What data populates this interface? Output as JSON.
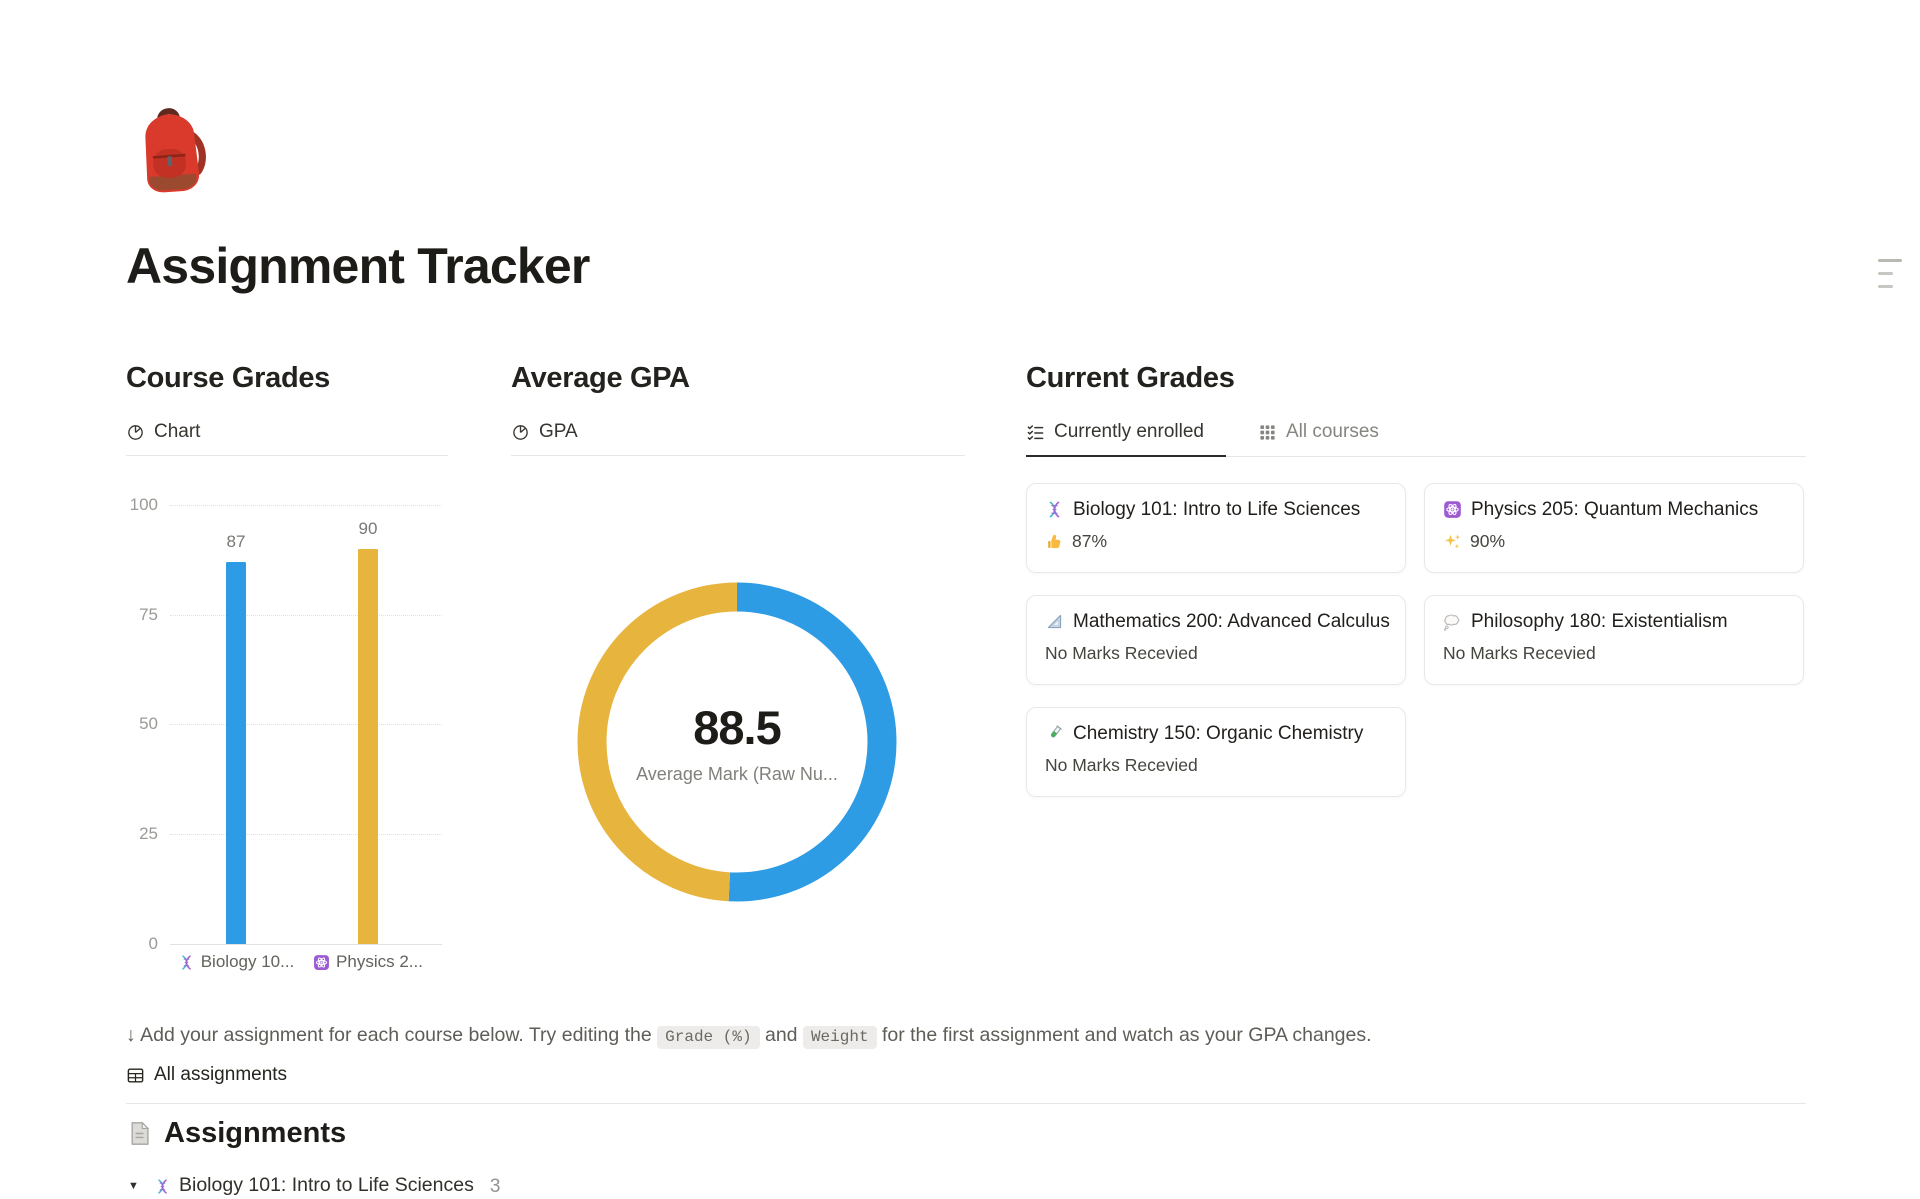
{
  "page": {
    "title": "Assignment Tracker",
    "icon": "backpack"
  },
  "course_grades": {
    "heading": "Course Grades",
    "tab_label": "Chart",
    "chart_data": {
      "type": "bar",
      "title": "Course Grades",
      "categories": [
        "Biology 10...",
        "Physics 2..."
      ],
      "category_icons": [
        "dna",
        "atom"
      ],
      "values": [
        87,
        90
      ],
      "bar_colors": [
        "#2E9BE5",
        "#E7B43E"
      ],
      "ylim": [
        0,
        100
      ],
      "yticks": [
        0,
        25,
        50,
        75,
        100
      ],
      "grid": "dotted-horizontal",
      "legend": "none"
    }
  },
  "average_gpa": {
    "heading": "Average GPA",
    "tab_label": "GPA",
    "chart_data": {
      "type": "pie",
      "style": "donut",
      "start": "top-clockwise",
      "center_value": "88.5",
      "center_label": "Average Mark (Raw Nu...",
      "slices": [
        {
          "name": "Physics 205: Quantum Mechanics",
          "value": 90,
          "color": "#2E9BE5"
        },
        {
          "name": "Biology 101: Intro to Life Sciences",
          "value": 87,
          "color": "#E7B43E"
        }
      ]
    }
  },
  "current_grades": {
    "heading": "Current Grades",
    "tabs": [
      {
        "label": "Currently enrolled",
        "icon": "checklist",
        "active": true
      },
      {
        "label": "All courses",
        "icon": "grid",
        "active": false
      }
    ],
    "cards": [
      {
        "icon": "dna",
        "title": "Biology 101: Intro to Life Sciences",
        "mark_icon": "thumbs-up",
        "mark": "87%"
      },
      {
        "icon": "atom",
        "title": "Physics 205: Quantum Mechanics",
        "mark_icon": "sparkles",
        "mark": "90%"
      },
      {
        "icon": "triangular-ruler",
        "title": "Mathematics 200: Advanced Calculus",
        "mark": "No Marks Recevied"
      },
      {
        "icon": "thought-balloon",
        "title": "Philosophy 180: Existentialism",
        "mark": "No Marks Recevied"
      },
      {
        "icon": "test-tube",
        "title": "Chemistry 150: Organic Chemistry",
        "mark": "No Marks Recevied"
      }
    ]
  },
  "help": {
    "prefix": "↓ Add your assignment for each course below. Try editing the ",
    "code1": "Grade (%)",
    "middle": " and ",
    "code2": "Weight",
    "suffix": " for the first assignment and watch as your GPA changes."
  },
  "assignments": {
    "view_tab": "All assignments",
    "heading": "Assignments",
    "groups": [
      {
        "icon": "dna",
        "title": "Biology 101: Intro to Life Sciences",
        "count": "3",
        "expanded": true
      }
    ]
  },
  "colors": {
    "accent_blue": "#2E9BE5",
    "accent_yellow": "#E7B43E",
    "text_primary": "#26251F",
    "text_secondary": "#787774",
    "divider": "#E7E6E3"
  }
}
